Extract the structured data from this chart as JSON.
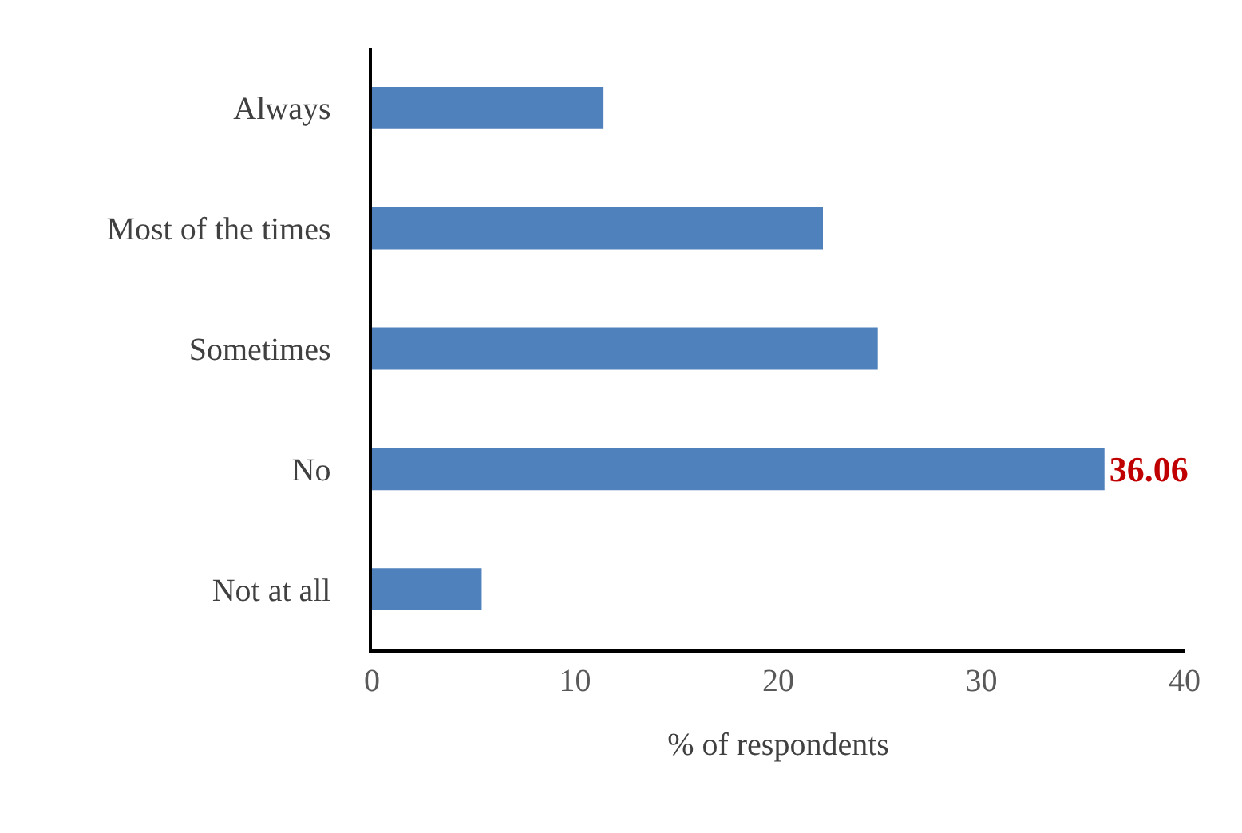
{
  "chart_data": {
    "type": "bar",
    "orientation": "horizontal",
    "categories": [
      "Always",
      "Most of the times",
      "Sometimes",
      "No",
      "Not at all"
    ],
    "series": [
      {
        "color": "#4f81bd",
        "values": [
          11.4,
          22.2,
          24.9,
          36.06,
          5.4
        ],
        "value_labels": [
          null,
          null,
          null,
          "36.06",
          null
        ]
      }
    ],
    "xlabel": "% of respondents",
    "xlim": [
      0,
      40
    ],
    "xticks": [
      0,
      10,
      20,
      30,
      40
    ]
  }
}
